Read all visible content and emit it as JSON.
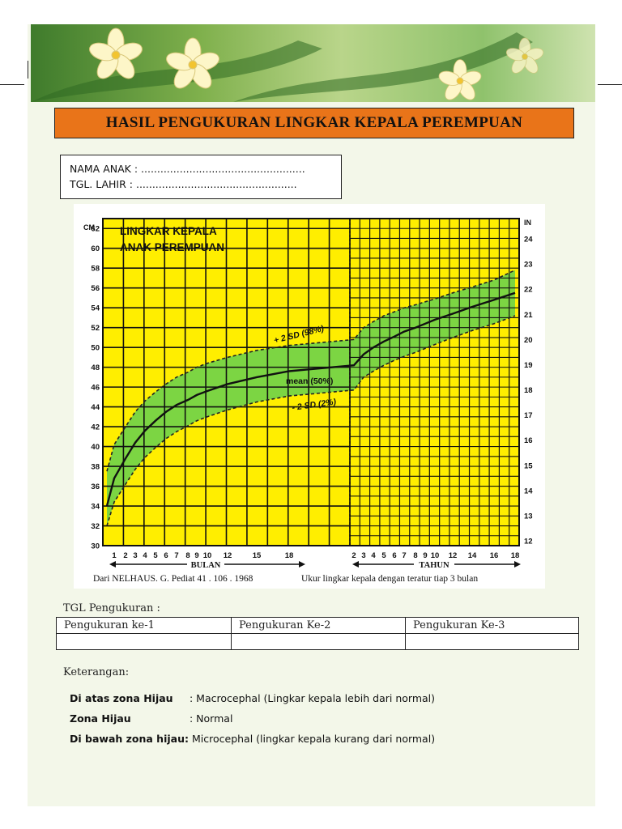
{
  "header": {
    "title": "HASIL PENGUKURAN LINGKAR KEPALA PEREMPUAN"
  },
  "identity": {
    "name_line": "NAMA ANAK : ...................................................",
    "dob_line": "TGL. LAHIR     : .................................................."
  },
  "chart_data": {
    "type": "line",
    "title_lines": [
      "LINGKAR KEPALA",
      "ANAK PEREMPUAN"
    ],
    "left_unit": "CM",
    "right_unit": "IN",
    "y_ticks": [
      30,
      32,
      34,
      36,
      38,
      40,
      42,
      44,
      46,
      48,
      50,
      52,
      54,
      56,
      58,
      60,
      62
    ],
    "ylim": [
      30,
      63
    ],
    "right_ticks": [
      "12",
      "13",
      "14",
      "15",
      "16",
      "17",
      "18",
      "19",
      "20",
      "21",
      "22",
      "23",
      "24"
    ],
    "months_ticks": [
      "1",
      "2",
      "3",
      "4",
      "5",
      "6",
      "7",
      "8",
      "9",
      "10",
      "12",
      "15",
      "18"
    ],
    "years_ticks": [
      "2",
      "3",
      "4",
      "5",
      "6",
      "7",
      "8",
      "9",
      "10",
      "12",
      "14",
      "16",
      "18"
    ],
    "x_axis_months_label": "BULAN",
    "x_axis_years_label": "TAHUN",
    "series": [
      {
        "name": "+ 2 SD (98%)",
        "style": "dashed",
        "color": "#222222",
        "x": [
          0,
          1,
          2,
          3,
          4,
          5,
          6,
          7,
          8,
          9,
          10,
          12,
          15,
          18,
          24,
          36,
          48,
          60,
          72,
          84,
          96,
          108,
          120,
          144,
          168,
          192,
          216
        ],
        "y": [
          37.5,
          40.2,
          42.0,
          43.5,
          44.6,
          45.5,
          46.3,
          47.0,
          47.5,
          48.0,
          48.4,
          49.0,
          49.7,
          50.2,
          50.8,
          52.0,
          52.6,
          53.2,
          53.6,
          54.0,
          54.3,
          54.6,
          54.9,
          55.5,
          56.1,
          56.8,
          57.8
        ]
      },
      {
        "name": "mean (50%)",
        "style": "solid",
        "color": "#111111",
        "x": [
          0,
          1,
          2,
          3,
          4,
          5,
          6,
          7,
          8,
          9,
          10,
          12,
          15,
          18,
          24,
          36,
          48,
          60,
          72,
          84,
          96,
          108,
          120,
          144,
          168,
          192,
          216
        ],
        "y": [
          34.0,
          36.8,
          38.8,
          40.4,
          41.6,
          42.6,
          43.5,
          44.2,
          44.7,
          45.2,
          45.6,
          46.3,
          47.0,
          47.6,
          48.2,
          49.3,
          50.0,
          50.6,
          51.1,
          51.6,
          52.0,
          52.4,
          52.8,
          53.4,
          54.1,
          54.8,
          55.5
        ]
      },
      {
        "name": "- 2 SD (2%)",
        "style": "dashed",
        "color": "#222222",
        "x": [
          0,
          1,
          2,
          3,
          4,
          5,
          6,
          7,
          8,
          9,
          10,
          12,
          15,
          18,
          24,
          36,
          48,
          60,
          72,
          84,
          96,
          108,
          120,
          144,
          168,
          192,
          216
        ],
        "y": [
          32.0,
          34.4,
          36.2,
          37.7,
          38.9,
          39.9,
          40.8,
          41.5,
          42.1,
          42.6,
          43.0,
          43.7,
          44.5,
          45.1,
          45.7,
          47.0,
          47.6,
          48.2,
          48.7,
          49.1,
          49.5,
          49.9,
          50.3,
          51.0,
          51.7,
          52.4,
          53.2
        ]
      }
    ],
    "colors": {
      "background": "#ffee00",
      "grid": "#111111",
      "band": "#6ed24a"
    },
    "grid": true
  },
  "captions": {
    "source": "Dari NELHAUS. G. Pediat 41 . 106 . 1968",
    "advice": "Ukur lingkar kepala dengan teratur tiap 3 bulan"
  },
  "measure": {
    "label": "TGL Pengukuran :",
    "columns": [
      "Pengukuran ke-1",
      "Pengukuran Ke-2",
      "Pengukuran Ke-3"
    ]
  },
  "notes": {
    "heading": "Keterangan:",
    "rows": [
      {
        "key": "Di atas zona Hijau",
        "value": ": Macrocephal (Lingkar kepala lebih dari normal)"
      },
      {
        "key": "Zona Hijau",
        "value": ": Normal"
      },
      {
        "key": "Di bawah zona hijau:",
        "value": "Microcephal (lingkar kepala kurang dari normal)"
      }
    ]
  }
}
